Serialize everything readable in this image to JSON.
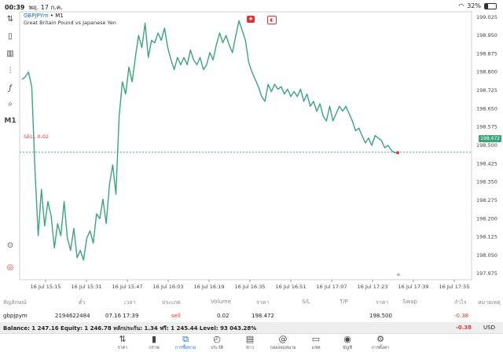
{
  "status_bar": {
    "time": "00:39",
    "date": "พฤ. 17 ก.ค.",
    "battery": "32%"
  },
  "chart": {
    "symbol": "GBPJPYm",
    "timeframe_suffix": "• M1",
    "description": "Great Britain Pound vs Japanese Yen",
    "sell_label": "SELL 0.02",
    "current_price": "198.472",
    "y_ticks": [
      "199.025",
      "198.950",
      "198.875",
      "198.800",
      "198.725",
      "198.650",
      "198.575",
      "198.500",
      "198.425",
      "198.350",
      "198.275",
      "198.200",
      "198.125",
      "198.050",
      "197.975"
    ],
    "x_ticks": [
      "16 Jul 15:15",
      "16 Jul 15:31",
      "16 Jul 15:47",
      "16 Jul 16:03",
      "16 Jul 16:19",
      "16 Jul 16:35",
      "16 Jul 16:51",
      "16 Jul 17:07",
      "16 Jul 17:23",
      "16 Jul 17:39",
      "16 Jul 17:55"
    ],
    "line_color": "#3aa57a",
    "sell_color": "#e53935"
  },
  "chart_data": {
    "type": "line",
    "ylim": [
      197.95,
      199.05
    ],
    "series": [
      {
        "values": [
          198.77,
          198.78,
          198.8,
          198.74,
          198.4,
          198.13,
          198.32,
          198.17,
          198.27,
          198.21,
          198.08,
          198.18,
          198.13,
          198.27,
          198.12,
          198.07,
          198.16,
          198.04,
          198.07,
          198.03,
          198.12,
          198.15,
          198.1,
          198.22,
          198.2,
          198.28,
          198.18,
          198.34,
          198.42,
          198.3,
          198.62,
          198.76,
          198.71,
          198.82,
          198.76,
          198.86,
          198.95,
          198.9,
          199.0,
          198.86,
          198.93,
          198.92,
          198.96,
          198.93,
          198.98,
          198.9,
          198.85,
          198.81,
          198.86,
          198.83,
          198.86,
          198.83,
          198.89,
          198.85,
          198.83,
          198.86,
          198.81,
          198.83,
          198.88,
          198.85,
          198.91,
          198.96,
          198.92,
          198.95,
          198.91,
          198.88,
          198.95,
          199.01,
          198.97,
          198.93,
          198.84,
          198.8,
          198.77,
          198.74,
          198.7,
          198.68,
          198.75,
          198.72,
          198.75,
          198.73,
          198.74,
          198.71,
          198.73,
          198.7,
          198.72,
          198.7,
          198.73,
          198.68,
          198.71,
          198.66,
          198.68,
          198.64,
          198.67,
          198.62,
          198.6,
          198.66,
          198.6,
          198.63,
          198.66,
          198.64,
          198.66,
          198.63,
          198.6,
          198.56,
          198.57,
          198.54,
          198.51,
          198.53,
          198.5,
          198.54,
          198.53,
          198.52,
          198.49,
          198.5,
          198.48,
          198.47,
          198.47
        ]
      }
    ]
  },
  "toolbar": {
    "icons": [
      "trade-icon",
      "candle-icon",
      "bar-chart-icon",
      "indicators-icon",
      "function-icon",
      "objects-icon"
    ],
    "timeframe": "M1"
  },
  "table": {
    "headers": [
      "สัญลักษณ์",
      "ตั๋ว",
      "เวลา",
      "ประเภท",
      "Volume",
      "ราคา",
      "S/L",
      "T/P",
      "ราคา",
      "Swap",
      "กำไร",
      "หมายเหตุ"
    ],
    "row": {
      "symbol": "gbpjpym",
      "ticket": "2194622484",
      "time": "07.16 17:39",
      "type": "sell",
      "volume": "0.02",
      "open_price": "198.472",
      "sl": "",
      "tp": "",
      "current_price": "198.500",
      "swap": "",
      "profit": "-0.38",
      "comment": ""
    }
  },
  "balance": {
    "text": "Balance: 1 247.16 Equity: 1 246.78 หลักประกัน: 1.34 ฟรี: 1 245.44 Level: 93 043.28%",
    "pnl": "-0.38",
    "currency": "USD"
  },
  "tabs": [
    {
      "label": "ราคา",
      "icon": "quotes-icon"
    },
    {
      "label": "กราฟ",
      "icon": "chart-icon"
    },
    {
      "label": "การซื้อขาย",
      "icon": "trade-icon",
      "active": true
    },
    {
      "label": "ประวัติ",
      "icon": "history-icon"
    },
    {
      "label": "ข่าว",
      "icon": "news-icon"
    },
    {
      "label": "กล่องจดหมาย",
      "icon": "mailbox-icon"
    },
    {
      "label": "แชท",
      "icon": "chat-icon"
    },
    {
      "label": "บัญชี",
      "icon": "account-icon"
    },
    {
      "label": "การตั้งค่า",
      "icon": "settings-icon"
    }
  ]
}
